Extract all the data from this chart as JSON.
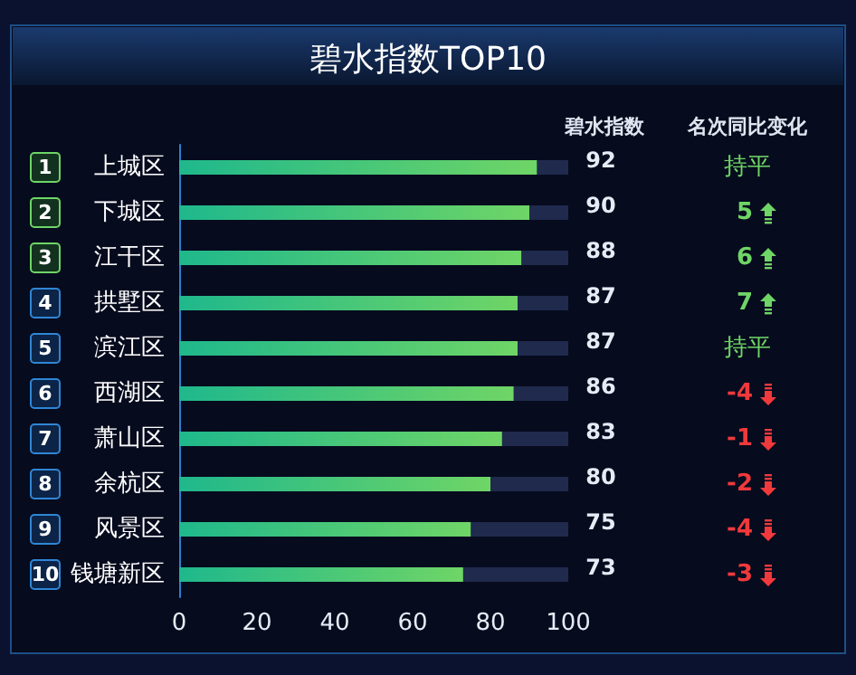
{
  "chart_data": {
    "type": "bar",
    "orientation": "horizontal",
    "stacked": true,
    "title": "碧水指数TOP10",
    "categories": [
      "上城区",
      "下城区",
      "江干区",
      "拱墅区",
      "滨江区",
      "西湖区",
      "萧山区",
      "余杭区",
      "风景区",
      "钱塘新区"
    ],
    "series": [
      {
        "color": "#6fd566",
        "values": [
          92,
          90,
          88,
          87,
          87,
          86,
          83,
          80,
          75,
          73
        ],
        "value_labels": [
          "92",
          "90",
          "88",
          "87",
          "87",
          "86",
          "83",
          "80",
          "75",
          "73"
        ]
      },
      {
        "color": "#1f2a4d",
        "values": [
          8,
          10,
          12,
          13,
          13,
          14,
          17,
          20,
          25,
          27
        ]
      }
    ],
    "xlim": [
      0,
      100
    ],
    "xticks": [
      0,
      20,
      40,
      60,
      80,
      100
    ],
    "grid": false,
    "annotations": [
      "碧水指数",
      "名次同比变化",
      "1",
      "持平",
      "2",
      "5",
      "3",
      "6",
      "4",
      "7",
      "5",
      "持平",
      "6",
      "-4",
      "7",
      "-1",
      "8",
      "-2",
      "9",
      "-4",
      "10",
      "-3"
    ]
  }
}
